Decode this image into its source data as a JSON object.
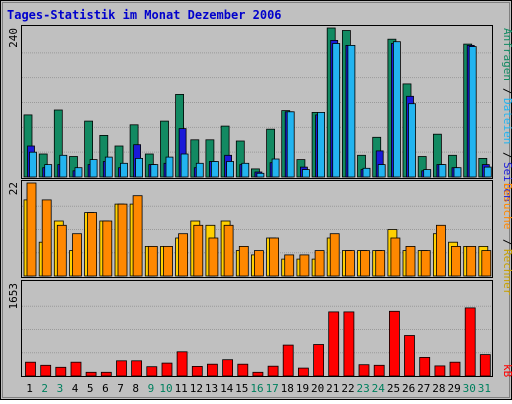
{
  "title": "Tages-Statistik im Monat Dezember 2006",
  "colors": {
    "frame_bg": "#c0c0c0",
    "plot_bg": "#c0c0c0",
    "grid": "#9a9a9a",
    "title": "#0000cc",
    "requests": "#128a62",
    "pages": "#1a1ad8",
    "files": "#22b4f0",
    "hosts": "#ffd000",
    "visits": "#ff8800",
    "kb": "#ff0000",
    "day_weekday": "#000000",
    "day_weekend": "#00805e"
  },
  "legend": {
    "requests": "Anfragen",
    "files": "Dateien",
    "pages": "Seiten",
    "visits": "Besuche",
    "hosts": "Rechner",
    "kb": "kB",
    "sep": "/"
  },
  "chart_data": [
    {
      "type": "bar",
      "panel": "top",
      "ymax_label": "240",
      "ylim": [
        0,
        240
      ],
      "categories": [
        "1",
        "2",
        "3",
        "4",
        "5",
        "6",
        "7",
        "8",
        "9",
        "10",
        "11",
        "12",
        "13",
        "14",
        "15",
        "16",
        "17",
        "18",
        "19",
        "20",
        "21",
        "22",
        "23",
        "24",
        "25",
        "26",
        "27",
        "28",
        "29",
        "30",
        "31"
      ],
      "series": [
        {
          "name": "Anfragen",
          "values": [
            100,
            37,
            108,
            33,
            90,
            67,
            50,
            84,
            37,
            90,
            133,
            60,
            60,
            82,
            58,
            13,
            77,
            107,
            28,
            104,
            240,
            236,
            35,
            64,
            222,
            150,
            33,
            69,
            35,
            214,
            30
          ]
        },
        {
          "name": "Dateien",
          "values": [
            40,
            20,
            35,
            15,
            28,
            32,
            22,
            30,
            20,
            32,
            37,
            22,
            25,
            25,
            22,
            6,
            29,
            105,
            12,
            104,
            215,
            212,
            14,
            20,
            218,
            118,
            12,
            20,
            15,
            210,
            16
          ]
        },
        {
          "name": "Seiten",
          "values": [
            50,
            15,
            20,
            10,
            20,
            25,
            15,
            52,
            20,
            22,
            78,
            15,
            25,
            35,
            20,
            8,
            23,
            105,
            16,
            100,
            220,
            212,
            12,
            42,
            215,
            130,
            10,
            20,
            15,
            212,
            20
          ]
        }
      ]
    },
    {
      "type": "bar",
      "panel": "middle",
      "ymax_label": "22",
      "ylim": [
        0,
        22
      ],
      "categories": [
        "1",
        "2",
        "3",
        "4",
        "5",
        "6",
        "7",
        "8",
        "9",
        "10",
        "11",
        "12",
        "13",
        "14",
        "15",
        "16",
        "17",
        "18",
        "19",
        "20",
        "21",
        "22",
        "23",
        "24",
        "25",
        "26",
        "27",
        "28",
        "29",
        "30",
        "31"
      ],
      "series": [
        {
          "name": "Rechner",
          "values": [
            18,
            8,
            13,
            6,
            15,
            13,
            17,
            17,
            7,
            7,
            9,
            13,
            12,
            13,
            6,
            5,
            9,
            4,
            4,
            4,
            9,
            6,
            6,
            6,
            11,
            6,
            6,
            10,
            8,
            7,
            7
          ]
        },
        {
          "name": "Besuche",
          "values": [
            22,
            18,
            12,
            10,
            15,
            13,
            17,
            19,
            7,
            7,
            10,
            12,
            9,
            12,
            7,
            6,
            9,
            5,
            5,
            6,
            10,
            6,
            6,
            6,
            9,
            7,
            6,
            12,
            7,
            7,
            6
          ]
        }
      ]
    },
    {
      "type": "bar",
      "panel": "bottom",
      "ymax_label": "1653",
      "ylim": [
        0,
        1653
      ],
      "categories": [
        "1",
        "2",
        "3",
        "4",
        "5",
        "6",
        "7",
        "8",
        "9",
        "10",
        "11",
        "12",
        "13",
        "14",
        "15",
        "16",
        "17",
        "18",
        "19",
        "20",
        "21",
        "22",
        "23",
        "24",
        "25",
        "26",
        "27",
        "28",
        "29",
        "30",
        "31"
      ],
      "series": [
        {
          "name": "kB",
          "values": [
            245,
            190,
            155,
            245,
            65,
            65,
            270,
            270,
            165,
            230,
            430,
            170,
            210,
            290,
            210,
            65,
            175,
            550,
            140,
            560,
            1140,
            1140,
            200,
            190,
            1150,
            720,
            330,
            180,
            245,
            1210,
            380
          ]
        }
      ]
    }
  ],
  "days": [
    {
      "label": "1",
      "weekend": false
    },
    {
      "label": "2",
      "weekend": true
    },
    {
      "label": "3",
      "weekend": true
    },
    {
      "label": "4",
      "weekend": false
    },
    {
      "label": "5",
      "weekend": false
    },
    {
      "label": "6",
      "weekend": false
    },
    {
      "label": "7",
      "weekend": false
    },
    {
      "label": "8",
      "weekend": false
    },
    {
      "label": "9",
      "weekend": true
    },
    {
      "label": "10",
      "weekend": true
    },
    {
      "label": "11",
      "weekend": false
    },
    {
      "label": "12",
      "weekend": false
    },
    {
      "label": "13",
      "weekend": false
    },
    {
      "label": "14",
      "weekend": false
    },
    {
      "label": "15",
      "weekend": false
    },
    {
      "label": "16",
      "weekend": true
    },
    {
      "label": "17",
      "weekend": true
    },
    {
      "label": "18",
      "weekend": false
    },
    {
      "label": "19",
      "weekend": false
    },
    {
      "label": "20",
      "weekend": false
    },
    {
      "label": "21",
      "weekend": false
    },
    {
      "label": "22",
      "weekend": false
    },
    {
      "label": "23",
      "weekend": true
    },
    {
      "label": "24",
      "weekend": true
    },
    {
      "label": "25",
      "weekend": false
    },
    {
      "label": "26",
      "weekend": false
    },
    {
      "label": "27",
      "weekend": false
    },
    {
      "label": "28",
      "weekend": false
    },
    {
      "label": "29",
      "weekend": false
    },
    {
      "label": "30",
      "weekend": true
    },
    {
      "label": "31",
      "weekend": true
    }
  ]
}
